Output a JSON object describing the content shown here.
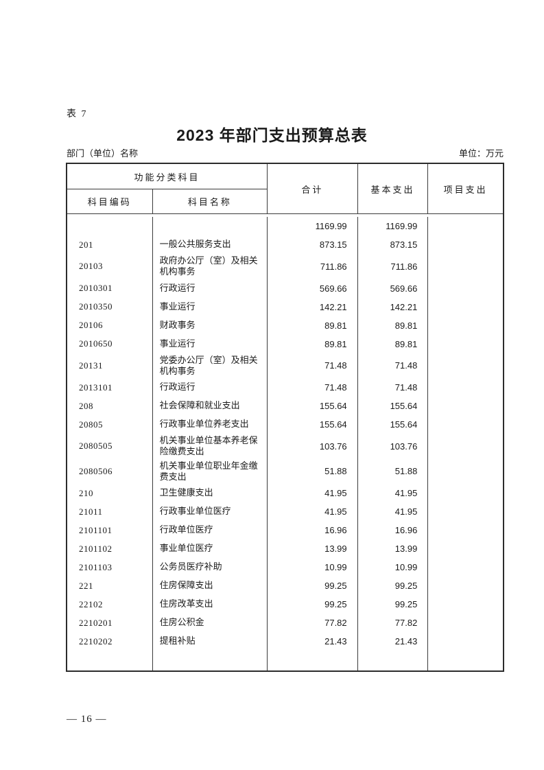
{
  "page": {
    "table_label": "表 7",
    "title": "2023 年部门支出预算总表",
    "department_label": "部门（单位）名称",
    "unit_note": "单位：万元",
    "page_number": "— 16 —"
  },
  "table": {
    "header": {
      "group": "功能分类科目",
      "code": "科目编码",
      "name": "科目名称",
      "total": "合计",
      "basic": "基本支出",
      "project": "项目支出"
    },
    "rows": [
      {
        "code": "",
        "name": "",
        "total": "1169.99",
        "basic": "1169.99",
        "project": ""
      },
      {
        "code": "201",
        "name": "一般公共服务支出",
        "total": "873.15",
        "basic": "873.15",
        "project": ""
      },
      {
        "code": "20103",
        "name": "政府办公厅（室）及相关机构事务",
        "total": "711.86",
        "basic": "711.86",
        "project": ""
      },
      {
        "code": "2010301",
        "name": "行政运行",
        "total": "569.66",
        "basic": "569.66",
        "project": ""
      },
      {
        "code": "2010350",
        "name": "事业运行",
        "total": "142.21",
        "basic": "142.21",
        "project": ""
      },
      {
        "code": "20106",
        "name": "财政事务",
        "total": "89.81",
        "basic": "89.81",
        "project": ""
      },
      {
        "code": "2010650",
        "name": "事业运行",
        "total": "89.81",
        "basic": "89.81",
        "project": ""
      },
      {
        "code": "20131",
        "name": "党委办公厅（室）及相关机构事务",
        "total": "71.48",
        "basic": "71.48",
        "project": ""
      },
      {
        "code": "2013101",
        "name": "行政运行",
        "total": "71.48",
        "basic": "71.48",
        "project": ""
      },
      {
        "code": "208",
        "name": "社会保障和就业支出",
        "total": "155.64",
        "basic": "155.64",
        "project": ""
      },
      {
        "code": "20805",
        "name": "行政事业单位养老支出",
        "total": "155.64",
        "basic": "155.64",
        "project": ""
      },
      {
        "code": "2080505",
        "name": "机关事业单位基本养老保险缴费支出",
        "total": "103.76",
        "basic": "103.76",
        "project": ""
      },
      {
        "code": "2080506",
        "name": "机关事业单位职业年金缴费支出",
        "total": "51.88",
        "basic": "51.88",
        "project": ""
      },
      {
        "code": "210",
        "name": "卫生健康支出",
        "total": "41.95",
        "basic": "41.95",
        "project": ""
      },
      {
        "code": "21011",
        "name": "行政事业单位医疗",
        "total": "41.95",
        "basic": "41.95",
        "project": ""
      },
      {
        "code": "2101101",
        "name": "行政单位医疗",
        "total": "16.96",
        "basic": "16.96",
        "project": ""
      },
      {
        "code": "2101102",
        "name": "事业单位医疗",
        "total": "13.99",
        "basic": "13.99",
        "project": ""
      },
      {
        "code": "2101103",
        "name": "公务员医疗补助",
        "total": "10.99",
        "basic": "10.99",
        "project": ""
      },
      {
        "code": "221",
        "name": "住房保障支出",
        "total": "99.25",
        "basic": "99.25",
        "project": ""
      },
      {
        "code": "22102",
        "name": "住房改革支出",
        "total": "99.25",
        "basic": "99.25",
        "project": ""
      },
      {
        "code": "2210201",
        "name": "住房公积金",
        "total": "77.82",
        "basic": "77.82",
        "project": ""
      },
      {
        "code": "2210202",
        "name": "提租补贴",
        "total": "21.43",
        "basic": "21.43",
        "project": ""
      }
    ]
  }
}
